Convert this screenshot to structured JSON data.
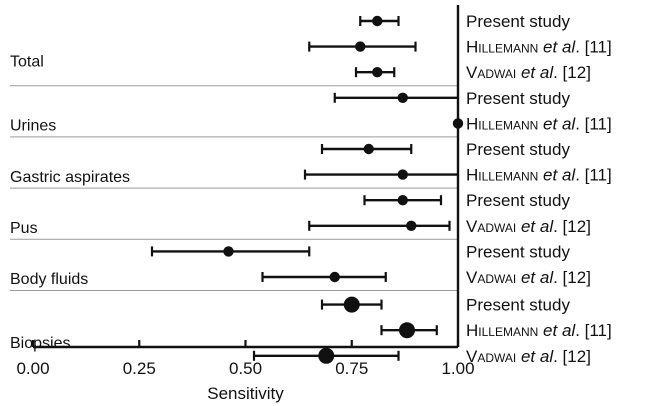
{
  "chart_data": {
    "type": "forest",
    "title": "",
    "xlabel": "Sensitivity",
    "xlim": [
      0,
      1
    ],
    "xticks": [
      "0.00",
      "0.25",
      "0.50",
      "0.75",
      "1.00"
    ],
    "grid": false,
    "groups": [
      {
        "name": "Total",
        "studies": [
          {
            "label": "Present study",
            "estimate": 0.81,
            "ci": [
              0.77,
              0.86
            ],
            "marker": "medium"
          },
          {
            "label_caps": "Hillemann",
            "label_rest": " et al. [11]",
            "estimate": 0.77,
            "ci": [
              0.65,
              0.9
            ],
            "marker": "medium"
          },
          {
            "label_caps": "Vadwai",
            "label_rest": " et al. [12]",
            "estimate": 0.81,
            "ci": [
              0.76,
              0.85
            ],
            "marker": "medium"
          }
        ]
      },
      {
        "name": "Urines",
        "studies": [
          {
            "label": "Present study",
            "estimate": 0.87,
            "ci": [
              0.71,
              1.0
            ],
            "marker": "medium"
          },
          {
            "label_caps": "Hillemann",
            "label_rest": " et al. [11]",
            "estimate": 1.0,
            "ci": [
              1.0,
              1.0
            ],
            "marker": "medium"
          }
        ]
      },
      {
        "name": "Gastric aspirates",
        "studies": [
          {
            "label": "Present study",
            "estimate": 0.79,
            "ci": [
              0.68,
              0.89
            ],
            "marker": "medium"
          },
          {
            "label_caps": "Hillemann",
            "label_rest": " et al. [11]",
            "estimate": 0.87,
            "ci": [
              0.64,
              1.0
            ],
            "marker": "medium"
          }
        ]
      },
      {
        "name": "Pus",
        "studies": [
          {
            "label": "Present study",
            "estimate": 0.87,
            "ci": [
              0.78,
              0.96
            ],
            "marker": "medium"
          },
          {
            "label_caps": "Vadwai",
            "label_rest": " et al. [12]",
            "estimate": 0.89,
            "ci": [
              0.65,
              0.98
            ],
            "marker": "medium"
          }
        ]
      },
      {
        "name": "Body fluids",
        "studies": [
          {
            "label": "Present study",
            "estimate": 0.46,
            "ci": [
              0.28,
              0.65
            ],
            "marker": "medium"
          },
          {
            "label_caps": "Vadwai",
            "label_rest": " et al. [12]",
            "estimate": 0.71,
            "ci": [
              0.54,
              0.83
            ],
            "marker": "medium"
          }
        ]
      },
      {
        "name": "Biopsies",
        "studies": [
          {
            "label": "Present study",
            "estimate": 0.75,
            "ci": [
              0.68,
              0.82
            ],
            "marker": "large"
          },
          {
            "label_caps": "Hillemann",
            "label_rest": " et al. [11]",
            "estimate": 0.88,
            "ci": [
              0.82,
              0.95
            ],
            "marker": "large"
          },
          {
            "label_caps": "Vadwai",
            "label_rest": " et al. [12]",
            "estimate": 0.69,
            "ci": [
              0.52,
              0.86
            ],
            "marker": "large"
          }
        ]
      }
    ],
    "colors": {
      "ink": "#111111",
      "separator": "#9a9a9a"
    }
  }
}
